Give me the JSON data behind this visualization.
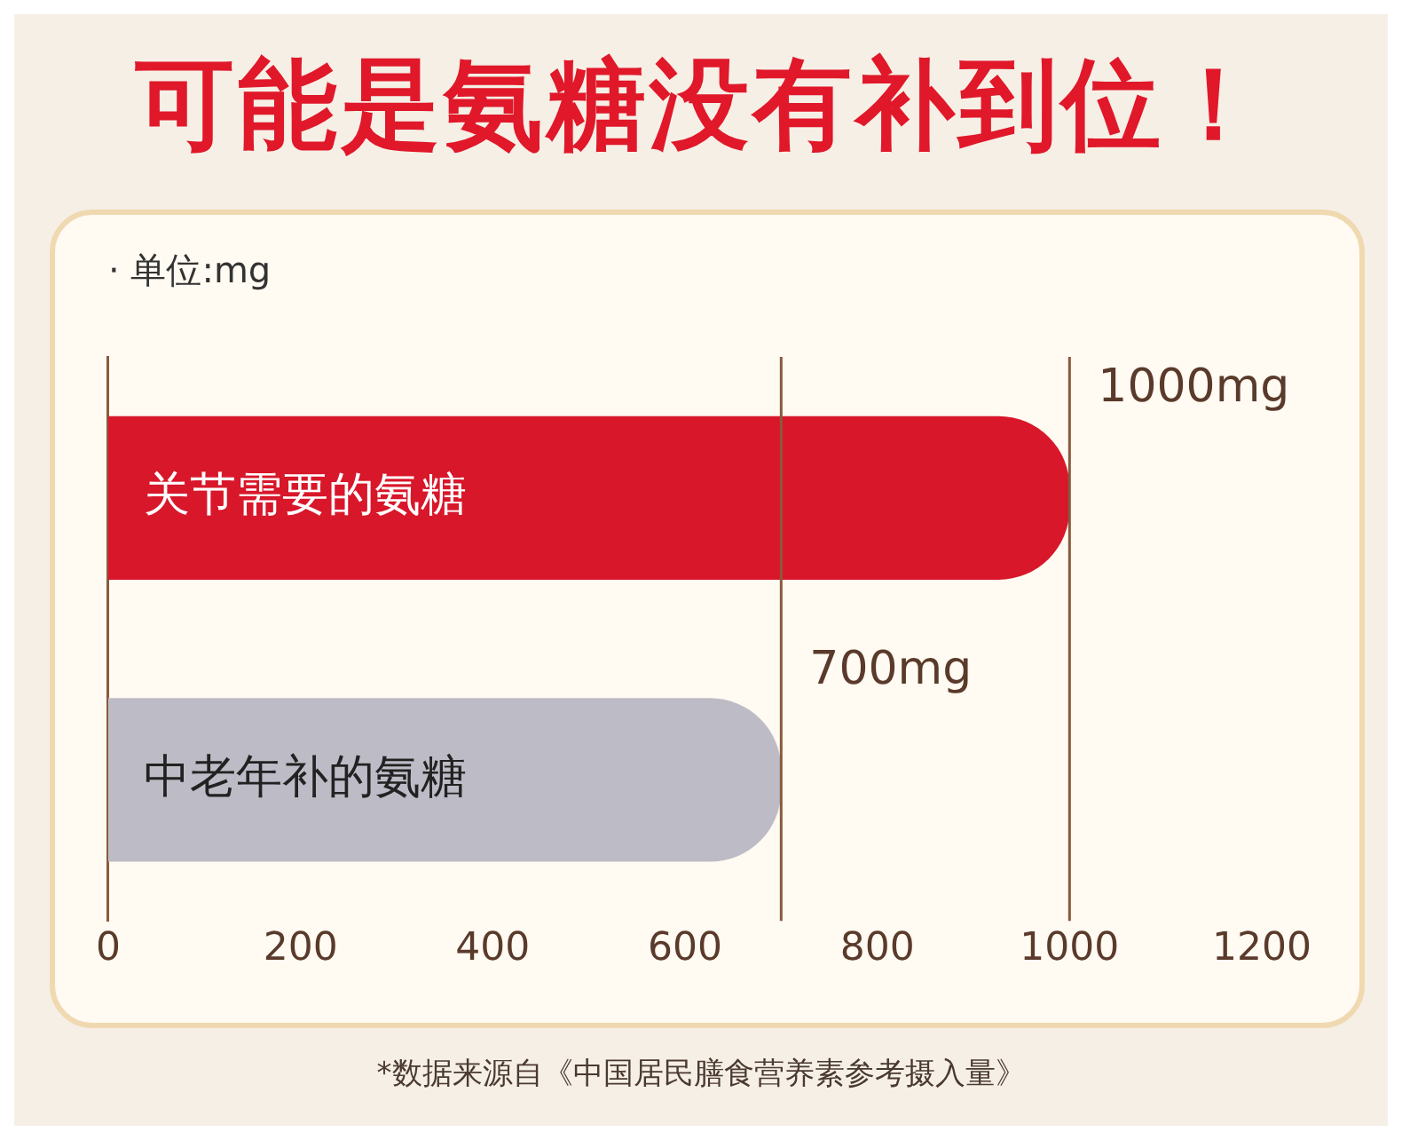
{
  "chart_data": {
    "type": "bar",
    "orientation": "horizontal",
    "title": "可能是氨糖没有补到位！",
    "subtitle": "· 单位:mg",
    "categories": [
      "关节需要的氨糖",
      "中老年补的氨糖"
    ],
    "values": [
      1000,
      700
    ],
    "colors": [
      "#d8172a",
      "#bdbcc6"
    ],
    "value_labels": [
      "1000mg",
      "700mg"
    ],
    "xlim": [
      0,
      1200
    ],
    "xticks": [
      0,
      200,
      400,
      600,
      800,
      1000,
      1200
    ],
    "ref_lines": [
      {
        "axis": "x",
        "value": 1000,
        "color": "#8a5a3c"
      },
      {
        "axis": "x",
        "value": 700,
        "color": "#8a5a3c"
      }
    ],
    "tick_labels": "x",
    "grid": false,
    "legend": false,
    "annotations": [
      "*数据来源自《中国居民膳食营养素参考摄入量》"
    ]
  }
}
